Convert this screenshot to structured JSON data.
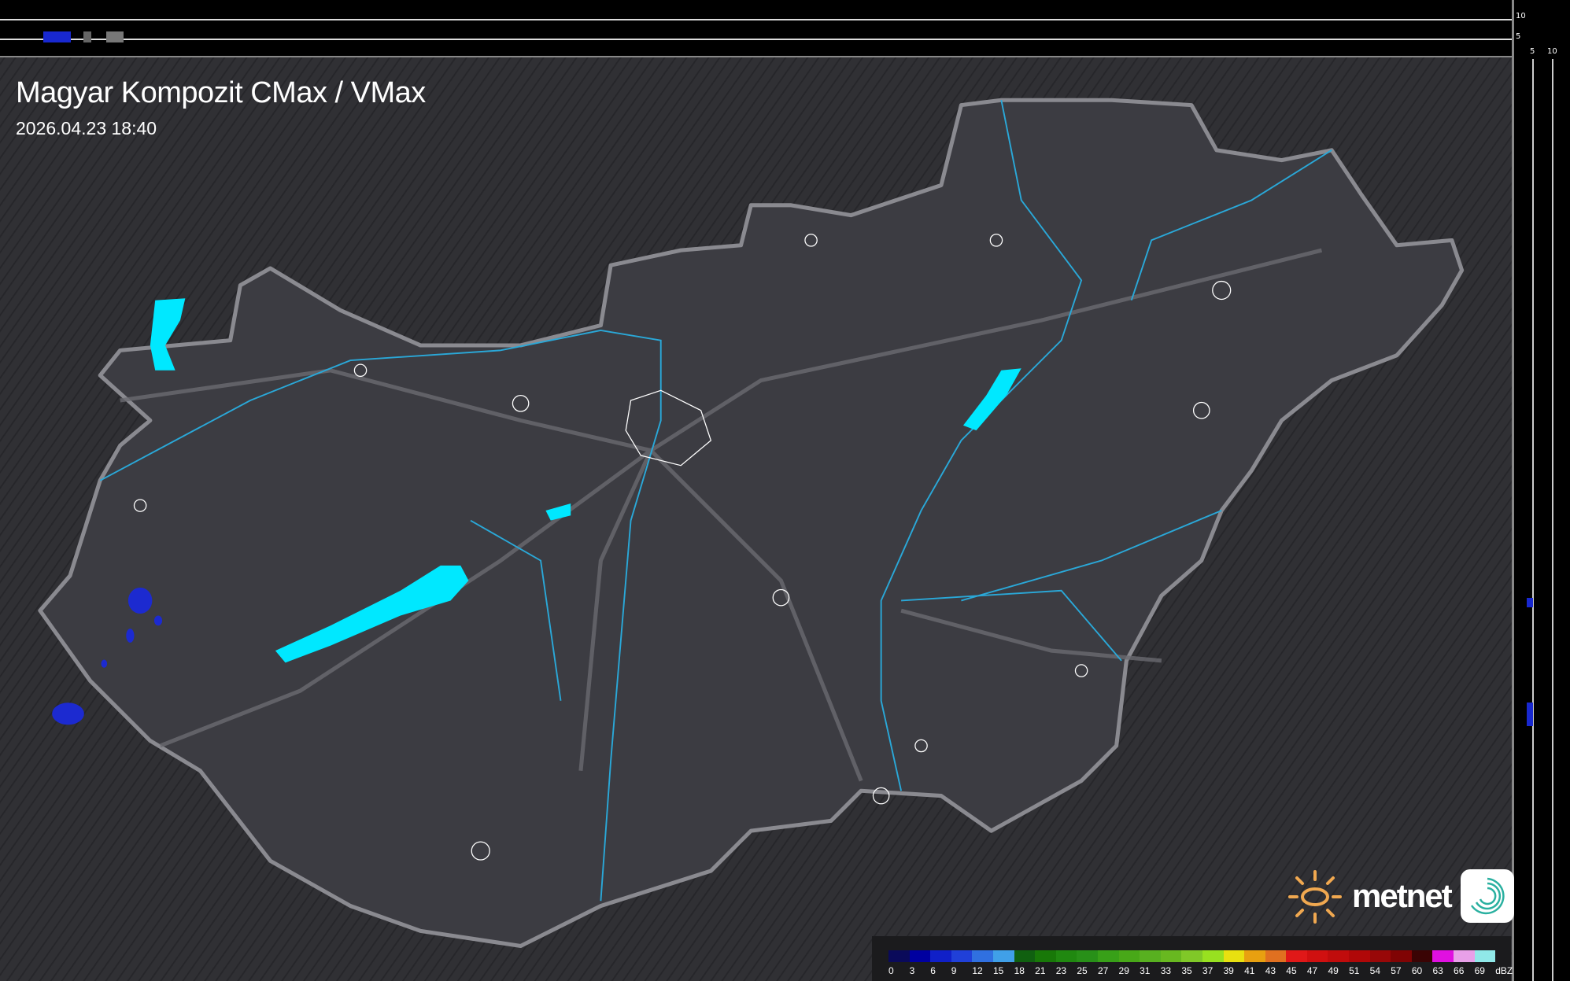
{
  "header": {
    "title": "Magyar Kompozit CMax / VMax",
    "timestamp": "2026.04.23 18:40"
  },
  "side_axis": {
    "top_labels": [
      "10",
      "5"
    ],
    "right_labels": [
      "5",
      "10"
    ]
  },
  "logo": {
    "text": "metnet"
  },
  "legend": {
    "unit": "dBZ",
    "labels": [
      "0",
      "3",
      "6",
      "9",
      "12",
      "15",
      "18",
      "21",
      "23",
      "25",
      "27",
      "29",
      "31",
      "33",
      "35",
      "37",
      "39",
      "41",
      "43",
      "45",
      "47",
      "49",
      "51",
      "54",
      "57",
      "60",
      "63",
      "66",
      "69"
    ],
    "colors": [
      "#0a0a5a",
      "#0000a0",
      "#1020c8",
      "#2040d8",
      "#3070e0",
      "#40a0e8",
      "#106010",
      "#187808",
      "#208810",
      "#289018",
      "#38a018",
      "#48a818",
      "#58b020",
      "#68b820",
      "#80c828",
      "#98e020",
      "#e8e010",
      "#e8a010",
      "#e07020",
      "#e01818",
      "#d01010",
      "#c00c0c",
      "#b00808",
      "#980808",
      "#800404",
      "#3a0404",
      "#e010e0",
      "#e8a0e8",
      "#90e8e8"
    ]
  },
  "colors": {
    "land": "#3b3b41",
    "outside": "#2e2e32",
    "border": "#8a8a90",
    "rivers": "#2aa8d8",
    "lakes": "#00e8ff",
    "echo_weak": "#1c2ad0"
  }
}
